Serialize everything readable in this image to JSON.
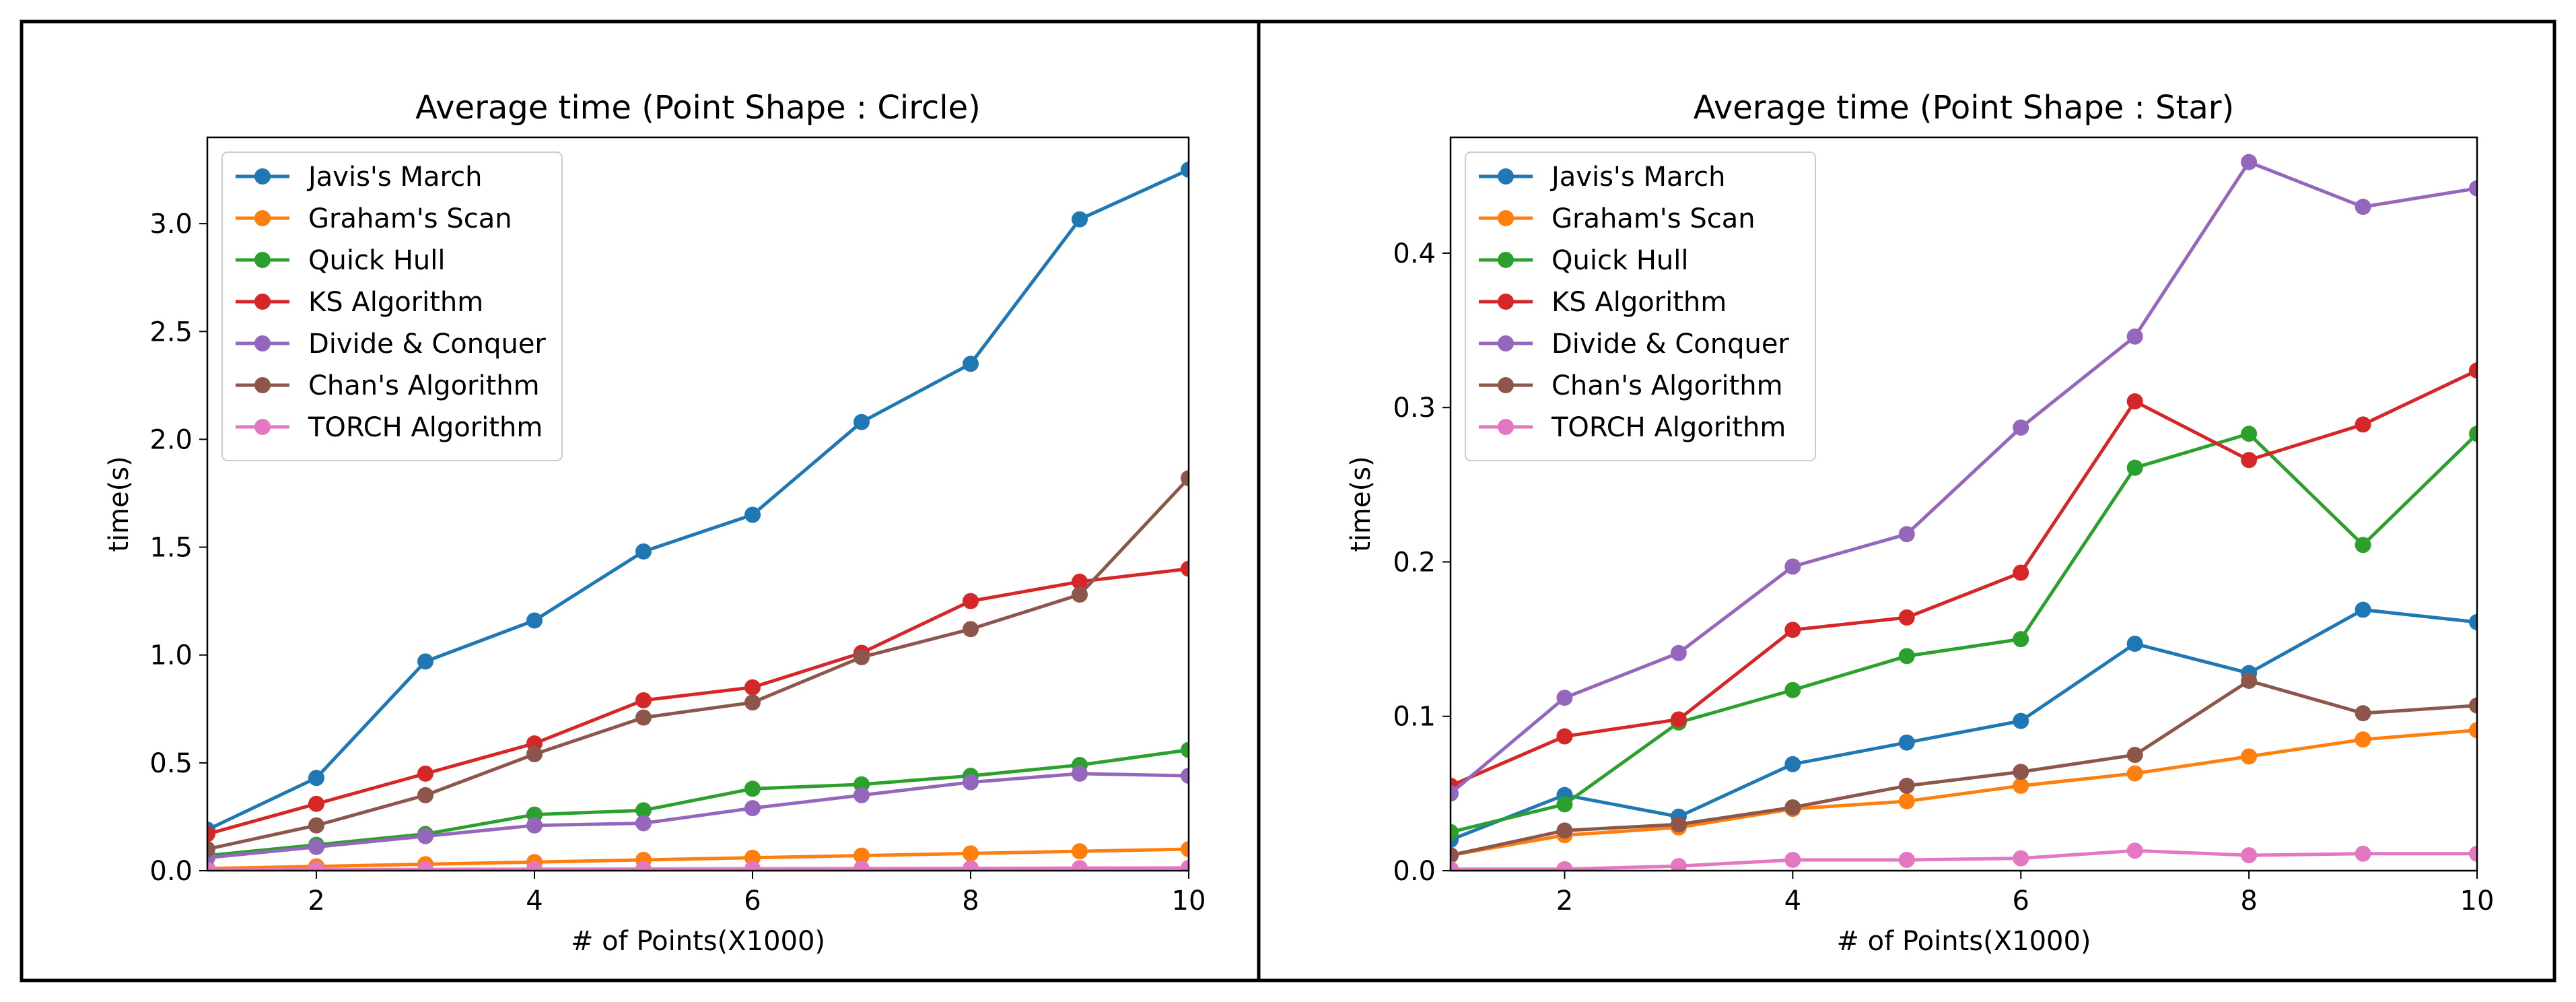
{
  "chart_data": [
    {
      "type": "line",
      "title": "Average time (Point Shape : Circle)",
      "xlabel": "# of Points(X1000)",
      "ylabel": "time(s)",
      "xlim": [
        1,
        10
      ],
      "ylim": [
        0,
        3.4
      ],
      "xticks": [
        2,
        4,
        6,
        8,
        10
      ],
      "yticks": [
        0.0,
        0.5,
        1.0,
        1.5,
        2.0,
        2.5,
        3.0
      ],
      "ytick_decimals": 1,
      "legend_position": "top-left",
      "x": [
        1,
        2,
        3,
        4,
        5,
        6,
        7,
        8,
        9,
        10
      ],
      "series": [
        {
          "name": "Javis's March",
          "color": "#1f77b4",
          "values": [
            0.19,
            0.43,
            0.97,
            1.16,
            1.48,
            1.65,
            2.08,
            2.35,
            3.02,
            3.25
          ]
        },
        {
          "name": "Graham's Scan",
          "color": "#ff7f0e",
          "values": [
            0.01,
            0.02,
            0.03,
            0.04,
            0.05,
            0.06,
            0.07,
            0.08,
            0.09,
            0.1
          ]
        },
        {
          "name": "Quick Hull",
          "color": "#2ca02c",
          "values": [
            0.07,
            0.12,
            0.17,
            0.26,
            0.28,
            0.38,
            0.4,
            0.44,
            0.49,
            0.56
          ]
        },
        {
          "name": "KS Algorithm",
          "color": "#d62728",
          "values": [
            0.17,
            0.31,
            0.45,
            0.59,
            0.79,
            0.85,
            1.01,
            1.25,
            1.34,
            1.4
          ]
        },
        {
          "name": "Divide & Conquer",
          "color": "#9467bd",
          "values": [
            0.06,
            0.11,
            0.16,
            0.21,
            0.22,
            0.29,
            0.35,
            0.41,
            0.45,
            0.44
          ]
        },
        {
          "name": "Chan's Algorithm",
          "color": "#8c564b",
          "values": [
            0.1,
            0.21,
            0.35,
            0.54,
            0.71,
            0.78,
            0.99,
            1.12,
            1.28,
            1.82
          ]
        },
        {
          "name": "TORCH Algorithm",
          "color": "#e377c2",
          "values": [
            0.003,
            0.005,
            0.006,
            0.007,
            0.008,
            0.009,
            0.01,
            0.011,
            0.012,
            0.013
          ]
        }
      ]
    },
    {
      "type": "line",
      "title": "Average time (Point Shape : Star)",
      "xlabel": "# of Points(X1000)",
      "ylabel": "time(s)",
      "xlim": [
        1,
        10
      ],
      "ylim": [
        0,
        0.475
      ],
      "xticks": [
        2,
        4,
        6,
        8,
        10
      ],
      "yticks": [
        0.0,
        0.1,
        0.2,
        0.3,
        0.4
      ],
      "ytick_decimals": 1,
      "legend_position": "top-left",
      "x": [
        1,
        2,
        3,
        4,
        5,
        6,
        7,
        8,
        9,
        10
      ],
      "series": [
        {
          "name": "Javis's March",
          "color": "#1f77b4",
          "values": [
            0.02,
            0.049,
            0.035,
            0.069,
            0.083,
            0.097,
            0.147,
            0.128,
            0.169,
            0.161
          ]
        },
        {
          "name": "Graham's Scan",
          "color": "#ff7f0e",
          "values": [
            0.01,
            0.023,
            0.028,
            0.04,
            0.045,
            0.055,
            0.063,
            0.074,
            0.085,
            0.091
          ]
        },
        {
          "name": "Quick Hull",
          "color": "#2ca02c",
          "values": [
            0.025,
            0.043,
            0.096,
            0.117,
            0.139,
            0.15,
            0.261,
            0.283,
            0.211,
            0.283
          ]
        },
        {
          "name": "KS Algorithm",
          "color": "#d62728",
          "values": [
            0.055,
            0.087,
            0.098,
            0.156,
            0.164,
            0.193,
            0.304,
            0.266,
            0.289,
            0.324
          ]
        },
        {
          "name": "Divide & Conquer",
          "color": "#9467bd",
          "values": [
            0.05,
            0.112,
            0.141,
            0.197,
            0.218,
            0.287,
            0.346,
            0.459,
            0.43,
            0.442
          ]
        },
        {
          "name": "Chan's Algorithm",
          "color": "#8c564b",
          "values": [
            0.01,
            0.026,
            0.03,
            0.041,
            0.055,
            0.064,
            0.075,
            0.123,
            0.102,
            0.107
          ]
        },
        {
          "name": "TORCH Algorithm",
          "color": "#e377c2",
          "values": [
            0.001,
            0.001,
            0.003,
            0.007,
            0.007,
            0.008,
            0.013,
            0.01,
            0.011,
            0.011
          ]
        }
      ]
    }
  ]
}
